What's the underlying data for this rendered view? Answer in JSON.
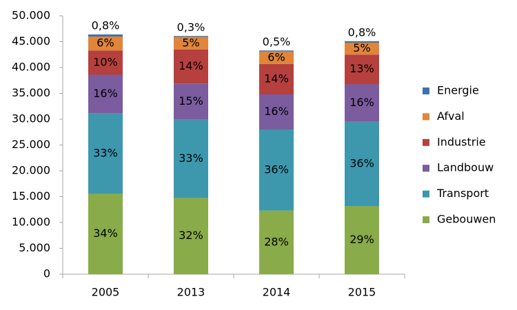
{
  "chart_data": {
    "type": "stacked_bar",
    "categories": [
      "2005",
      "2013",
      "2014",
      "2015"
    ],
    "ylim": [
      0,
      50000
    ],
    "yticks": [
      0,
      {
        "value": 5000,
        "label": "5.000"
      },
      {
        "value": 10000,
        "label": "10.000"
      },
      {
        "value": 15000,
        "label": "15.000"
      },
      {
        "value": 20000,
        "label": "20.000"
      },
      {
        "value": 25000,
        "label": "25.000"
      },
      {
        "value": 30000,
        "label": "30.000"
      },
      {
        "value": 35000,
        "label": "35.000"
      },
      {
        "value": 40000,
        "label": "40.000"
      },
      {
        "value": 45000,
        "label": "45.000"
      },
      {
        "value": 50000,
        "label": "50.000"
      }
    ],
    "grid": false,
    "legend": "right",
    "series": [
      {
        "name": "Gebouwen",
        "color": "#8aab4a",
        "values": [
          15600,
          14800,
          12300,
          13200
        ],
        "share_labels": [
          "34%",
          "32%",
          "28%",
          "29%"
        ]
      },
      {
        "name": "Transport",
        "color": "#3d98ae",
        "values": [
          15500,
          15100,
          15700,
          16300
        ],
        "share_labels": [
          "33%",
          "33%",
          "36%",
          "36%"
        ]
      },
      {
        "name": "Landbouw",
        "color": "#7b5c9e",
        "values": [
          7500,
          7000,
          6800,
          7300
        ],
        "share_labels": [
          "16%",
          "15%",
          "16%",
          "16%"
        ]
      },
      {
        "name": "Industrie",
        "color": "#b5403d",
        "values": [
          4700,
          6600,
          5900,
          5700
        ],
        "share_labels": [
          "10%",
          "14%",
          "14%",
          "13%"
        ]
      },
      {
        "name": "Afval",
        "color": "#e0853a",
        "values": [
          2700,
          2400,
          2400,
          2300
        ],
        "share_labels": [
          "6%",
          "5%",
          "6%",
          "5%"
        ]
      },
      {
        "name": "Energie",
        "color": "#3f72ad",
        "values": [
          400,
          200,
          200,
          300
        ],
        "share_labels": [
          "0,8%",
          "0,3%",
          "0,5%",
          "0,8%"
        ]
      }
    ]
  }
}
